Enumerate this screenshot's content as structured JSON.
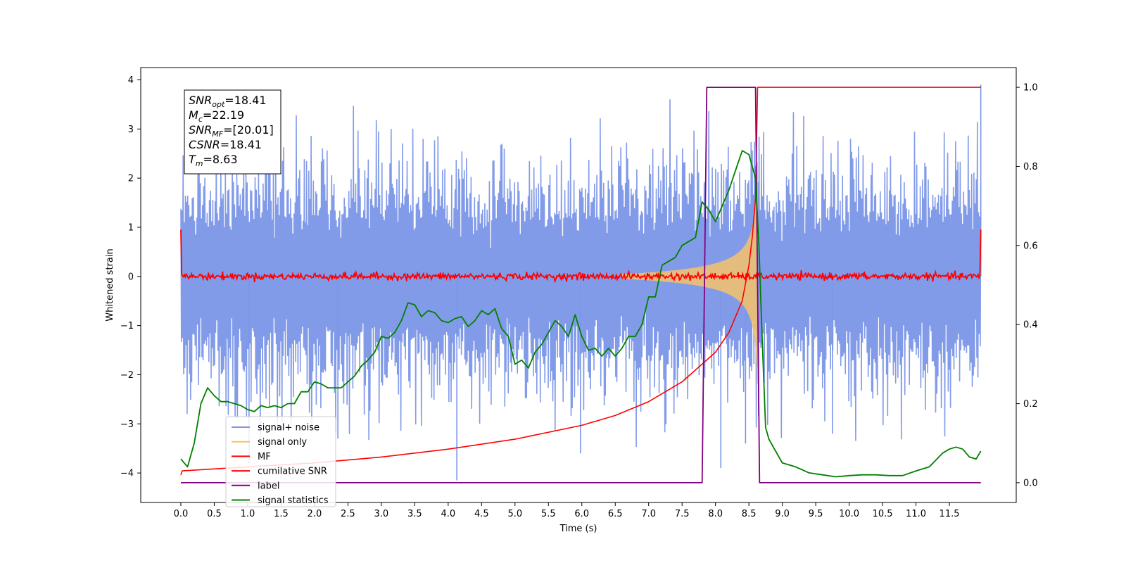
{
  "chart_data": {
    "type": "line",
    "xlabel": "Time (s)",
    "ylabel": "Whitened strain",
    "xlim": [
      -0.6,
      12.5
    ],
    "ylim": [
      -4.6,
      4.25
    ],
    "y2lim": [
      -0.05,
      1.05
    ],
    "xticks": [
      "0.0",
      "0.5",
      "1.0",
      "1.5",
      "2.0",
      "2.5",
      "3.0",
      "3.5",
      "4.0",
      "4.5",
      "5.0",
      "5.5",
      "6.0",
      "6.5",
      "7.0",
      "7.5",
      "8.0",
      "8.5",
      "9.0",
      "9.5",
      "10.0",
      "10.5",
      "11.0",
      "11.5"
    ],
    "yticks": [
      "4",
      "3",
      "2",
      "1",
      "0",
      "−1",
      "−2",
      "−3",
      "−4"
    ],
    "y2ticks": [
      "1.0",
      "0.8",
      "0.6",
      "0.4",
      "0.2",
      "0.0"
    ],
    "grid": false,
    "legend_position": "lower-left",
    "info_box": {
      "lines": [
        {
          "main": "SNR",
          "sub": "opt",
          "value": "=18.41"
        },
        {
          "main": "M",
          "sub": "c",
          "value": "=22.19"
        },
        {
          "main": "SNR",
          "sub": "MF",
          "value": "=[20.01]"
        },
        {
          "main": "CSNR",
          "sub": "",
          "value": "=18.41"
        },
        {
          "main": "T",
          "sub": "m",
          "value": "=8.63"
        }
      ]
    },
    "series": [
      {
        "name": "signal+ noise",
        "color": "#7b96e8",
        "axis": "left",
        "style": "noise band, amplitude ~±2.3 with peaks to ±3.4"
      },
      {
        "name": "signal only",
        "color": "#f5c26b",
        "axis": "left",
        "style": "chirp from ~7.0 s growing to ~±3 at 8.63 s"
      },
      {
        "name": "MF",
        "color": "#ff0000",
        "axis": "left",
        "style": "near-zero jitter, spikes to 1.0 at 0.0 and 11.97"
      },
      {
        "name": "cumilative SNR",
        "color": "#ff0000",
        "axis": "right",
        "x": [
          0.0,
          0.02,
          1.0,
          2.0,
          3.0,
          4.0,
          5.0,
          6.0,
          6.5,
          7.0,
          7.5,
          8.0,
          8.2,
          8.4,
          8.5,
          8.55,
          8.6,
          8.63,
          11.97
        ],
        "y": [
          0.02,
          0.03,
          0.04,
          0.05,
          0.065,
          0.085,
          0.11,
          0.145,
          0.17,
          0.205,
          0.255,
          0.33,
          0.38,
          0.46,
          0.55,
          0.62,
          0.72,
          1.0,
          1.0
        ]
      },
      {
        "name": "label",
        "color": "#800080",
        "axis": "right",
        "x": [
          0.0,
          7.8,
          7.87,
          8.6,
          8.66,
          11.97
        ],
        "y": [
          0.0,
          0.0,
          1.0,
          1.0,
          0.0,
          0.0
        ]
      },
      {
        "name": "signal statistics",
        "color": "#008000",
        "axis": "right",
        "x": [
          0.0,
          0.1,
          0.2,
          0.3,
          0.4,
          0.5,
          0.6,
          0.7,
          0.8,
          0.9,
          1.0,
          1.1,
          1.2,
          1.3,
          1.4,
          1.5,
          1.6,
          1.7,
          1.8,
          1.9,
          2.0,
          2.1,
          2.2,
          2.3,
          2.4,
          2.5,
          2.6,
          2.7,
          2.8,
          2.9,
          3.0,
          3.1,
          3.2,
          3.3,
          3.4,
          3.5,
          3.6,
          3.7,
          3.8,
          3.9,
          4.0,
          4.1,
          4.2,
          4.3,
          4.4,
          4.5,
          4.6,
          4.7,
          4.8,
          4.9,
          5.0,
          5.1,
          5.2,
          5.3,
          5.4,
          5.5,
          5.6,
          5.7,
          5.8,
          5.9,
          6.0,
          6.1,
          6.2,
          6.3,
          6.4,
          6.5,
          6.6,
          6.7,
          6.8,
          6.9,
          7.0,
          7.1,
          7.2,
          7.3,
          7.4,
          7.5,
          7.6,
          7.7,
          7.8,
          7.9,
          8.0,
          8.1,
          8.2,
          8.3,
          8.4,
          8.5,
          8.6,
          8.65,
          8.7,
          8.75,
          8.8,
          8.9,
          9.0,
          9.2,
          9.4,
          9.6,
          9.8,
          10.0,
          10.2,
          10.4,
          10.6,
          10.8,
          11.0,
          11.2,
          11.4,
          11.5,
          11.6,
          11.7,
          11.8,
          11.9,
          11.97
        ],
        "y": [
          0.06,
          0.04,
          0.1,
          0.2,
          0.24,
          0.22,
          0.205,
          0.205,
          0.2,
          0.195,
          0.185,
          0.18,
          0.195,
          0.19,
          0.195,
          0.19,
          0.2,
          0.2,
          0.23,
          0.23,
          0.255,
          0.25,
          0.24,
          0.24,
          0.24,
          0.255,
          0.27,
          0.295,
          0.31,
          0.33,
          0.37,
          0.365,
          0.38,
          0.41,
          0.455,
          0.45,
          0.42,
          0.435,
          0.43,
          0.41,
          0.405,
          0.415,
          0.42,
          0.395,
          0.41,
          0.435,
          0.425,
          0.44,
          0.39,
          0.37,
          0.3,
          0.31,
          0.29,
          0.33,
          0.35,
          0.38,
          0.41,
          0.395,
          0.37,
          0.425,
          0.37,
          0.335,
          0.34,
          0.32,
          0.34,
          0.32,
          0.34,
          0.37,
          0.37,
          0.4,
          0.47,
          0.47,
          0.55,
          0.56,
          0.57,
          0.6,
          0.61,
          0.62,
          0.71,
          0.69,
          0.66,
          0.7,
          0.74,
          0.79,
          0.84,
          0.83,
          0.77,
          0.6,
          0.36,
          0.14,
          0.11,
          0.08,
          0.05,
          0.04,
          0.025,
          0.02,
          0.015,
          0.018,
          0.02,
          0.02,
          0.018,
          0.018,
          0.03,
          0.04,
          0.075,
          0.085,
          0.09,
          0.085,
          0.065,
          0.06,
          0.08
        ]
      }
    ]
  }
}
